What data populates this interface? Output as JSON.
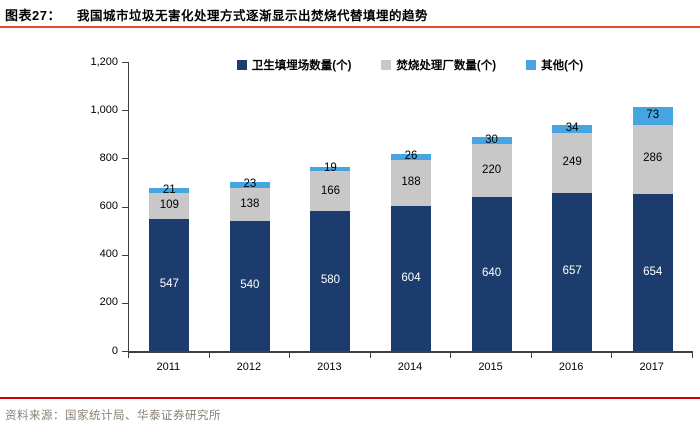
{
  "header": {
    "figure_label": "图表27：",
    "title": "我国城市垃圾无害化处理方式逐渐显示出焚烧代替填埋的趋势"
  },
  "source": {
    "text": "资料来源：国家统计局、华泰证券研究所"
  },
  "colors": {
    "landfill": "#1C3C6E",
    "incineration": "#C8C8C8",
    "other": "#46A5E1",
    "title_rule": "#E3492F",
    "bottom_rule": "#D40000",
    "source_text": "#8A8174",
    "axis": "#3F3F3F"
  },
  "chart_data": {
    "type": "bar",
    "stacked": true,
    "title": "我国城市垃圾无害化处理方式逐渐显示出焚烧代替填埋的趋势",
    "categories": [
      "2011",
      "2012",
      "2013",
      "2014",
      "2015",
      "2016",
      "2017"
    ],
    "series": [
      {
        "name": "卫生填埋场数量(个)",
        "color_key": "landfill",
        "label_color": "#FFFFFF",
        "values": [
          547,
          540,
          580,
          604,
          640,
          657,
          654
        ]
      },
      {
        "name": "焚烧处理厂数量(个)",
        "color_key": "incineration",
        "label_color": "#000000",
        "values": [
          109,
          138,
          166,
          188,
          220,
          249,
          286
        ]
      },
      {
        "name": "其他(个)",
        "color_key": "other",
        "label_color": "#000000",
        "values": [
          21,
          23,
          19,
          26,
          30,
          34,
          73
        ]
      }
    ],
    "xlabel": "",
    "ylabel": "",
    "ylim": [
      0,
      1200
    ],
    "ytick_step": 200,
    "ytick_labels": [
      "0",
      "200",
      "400",
      "600",
      "800",
      "1,000",
      "1,200"
    ],
    "legend_position": "top",
    "grid": false,
    "data_labels": true
  }
}
